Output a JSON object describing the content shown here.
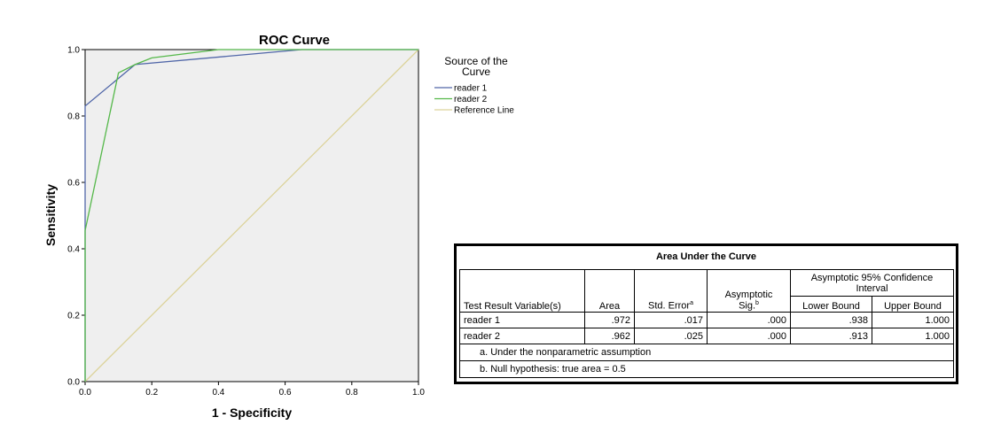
{
  "chart_data": {
    "type": "line",
    "title": "ROC Curve",
    "xlabel": "1 - Specificity",
    "ylabel": "Sensitivity",
    "xlim": [
      0.0,
      1.0
    ],
    "ylim": [
      0.0,
      1.0
    ],
    "xticks": [
      "0.0",
      "0.2",
      "0.4",
      "0.6",
      "0.8",
      "1.0"
    ],
    "yticks": [
      "0.0",
      "0.2",
      "0.4",
      "0.6",
      "0.8",
      "1.0"
    ],
    "grid": false,
    "legend_title": "Source of the Curve",
    "legend_position": "right",
    "series": [
      {
        "name": "reader 1",
        "color": "#5066a8",
        "points": [
          [
            0.0,
            0.0
          ],
          [
            0.0,
            0.83
          ],
          [
            0.15,
            0.955
          ],
          [
            0.65,
            1.0
          ],
          [
            1.0,
            1.0
          ]
        ]
      },
      {
        "name": "reader 2",
        "color": "#55b84a",
        "points": [
          [
            0.0,
            0.0
          ],
          [
            0.0,
            0.455
          ],
          [
            0.1,
            0.93
          ],
          [
            0.15,
            0.955
          ],
          [
            0.2,
            0.975
          ],
          [
            0.4,
            1.0
          ],
          [
            1.0,
            1.0
          ]
        ]
      },
      {
        "name": "Reference Line",
        "color": "#dcd39a",
        "points": [
          [
            0.0,
            0.0
          ],
          [
            1.0,
            1.0
          ]
        ]
      }
    ]
  },
  "auc_table": {
    "title": "Area Under the Curve",
    "headers": {
      "test_result": "Test Result Variable(s)",
      "area": "Area",
      "std_error": "Std. Error",
      "std_error_sup": "a",
      "asym_sig_line1": "Asymptotic",
      "asym_sig_line2": "Sig.",
      "asym_sig_sup": "b",
      "ci": "Asymptotic 95% Confidence Interval",
      "lower": "Lower Bound",
      "upper": "Upper Bound"
    },
    "rows": [
      {
        "variable": "reader 1",
        "area": ".972",
        "std_error": ".017",
        "sig": ".000",
        "lower": ".938",
        "upper": "1.000"
      },
      {
        "variable": "reader 2",
        "area": ".962",
        "std_error": ".025",
        "sig": ".000",
        "lower": ".913",
        "upper": "1.000"
      }
    ],
    "footnotes": [
      "a. Under the nonparametric assumption",
      "b. Null hypothesis: true area = 0.5"
    ]
  }
}
